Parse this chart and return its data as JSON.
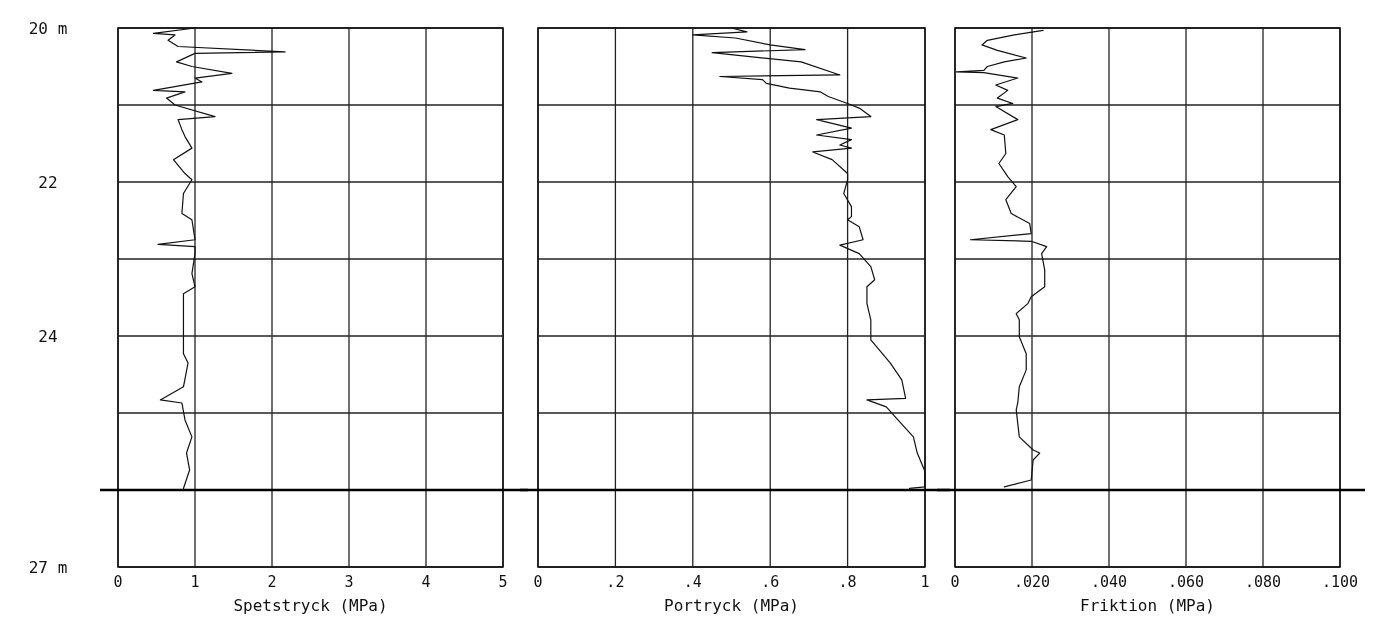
{
  "chart_data": [
    {
      "type": "line",
      "xlabel": "Spetstryck (MPa)",
      "xlim": [
        0,
        5
      ],
      "xticks": [
        0,
        1,
        2,
        3,
        4,
        5
      ],
      "ylim": [
        27,
        20
      ],
      "yticks": [
        {
          "value": 20,
          "label": "20 m"
        },
        {
          "value": 21,
          "label": null
        },
        {
          "value": 22,
          "label": "22"
        },
        {
          "value": 23,
          "label": null
        },
        {
          "value": 24,
          "label": "24"
        },
        {
          "value": 25,
          "label": null
        },
        {
          "value": 26,
          "label": null
        },
        {
          "value": 27,
          "label": "27 m"
        }
      ],
      "grid": true,
      "ref_lines": [
        {
          "axis": "y",
          "value": 26,
          "label": null
        }
      ],
      "series": [
        {
          "color": "#111111",
          "x": [
            1.0,
            0.46,
            0.74,
            0.65,
            0.78,
            2.17,
            1.0,
            0.76,
            0.96,
            1.48,
            1.0,
            1.09,
            0.46,
            0.87,
            0.63,
            0.74,
            1.26,
            0.78,
            0.83,
            0.87,
            0.96,
            0.72,
            0.87,
            0.96,
            0.85,
            0.83,
            0.96,
            1.0,
            0.52,
            1.0,
            1.0,
            0.96,
            1.0,
            0.85,
            0.85,
            0.85,
            0.85,
            0.91,
            0.85,
            0.55,
            0.83,
            0.87,
            0.96,
            0.89,
            0.93,
            0.85
          ],
          "values": [
            20.0,
            20.07,
            20.09,
            20.16,
            20.24,
            20.31,
            20.33,
            20.44,
            20.5,
            20.59,
            20.65,
            20.7,
            20.81,
            20.83,
            20.91,
            21.0,
            21.15,
            21.19,
            21.32,
            21.41,
            21.56,
            21.71,
            21.89,
            21.97,
            22.15,
            22.41,
            22.49,
            22.75,
            22.81,
            22.84,
            22.93,
            23.19,
            23.36,
            23.45,
            23.71,
            23.97,
            24.23,
            24.35,
            24.66,
            24.83,
            24.87,
            25.09,
            25.31,
            25.52,
            25.74,
            25.98
          ]
        }
      ]
    },
    {
      "type": "line",
      "xlabel": "Portryck (MPa)",
      "xlim": [
        0,
        1
      ],
      "xticks": [
        0,
        {
          "value": 0.2,
          "label": ".2"
        },
        {
          "value": 0.4,
          "label": ".4"
        },
        {
          "value": 0.6,
          "label": ".6"
        },
        {
          "value": 0.8,
          "label": ".8"
        },
        1
      ],
      "ylim": [
        27,
        20
      ],
      "yticks": [
        20,
        21,
        22,
        23,
        24,
        25,
        26,
        27
      ],
      "tick_labels": "x",
      "grid": true,
      "ref_lines": [
        {
          "axis": "y",
          "value": 26,
          "label": null
        }
      ],
      "series": [
        {
          "color": "#111111",
          "x": [
            0.5,
            0.54,
            0.4,
            0.51,
            0.6,
            0.69,
            0.45,
            0.68,
            0.78,
            0.47,
            0.58,
            0.59,
            0.65,
            0.73,
            0.75,
            0.8,
            0.83,
            0.86,
            0.72,
            0.81,
            0.72,
            0.81,
            0.78,
            0.81,
            0.71,
            0.76,
            0.8,
            0.8,
            0.79,
            0.81,
            0.81,
            0.8,
            0.83,
            0.84,
            0.78,
            0.83,
            0.86,
            0.87,
            0.85,
            0.85,
            0.86,
            0.86,
            0.91,
            0.94,
            0.95,
            0.85,
            0.9,
            0.93,
            0.97,
            0.98,
            1.0,
            1.0,
            0.96
          ],
          "values": [
            20.0,
            20.05,
            20.09,
            20.13,
            20.22,
            20.28,
            20.32,
            20.44,
            20.61,
            20.63,
            20.67,
            20.72,
            20.78,
            20.83,
            20.89,
            20.98,
            21.04,
            21.15,
            21.19,
            21.3,
            21.39,
            21.45,
            21.52,
            21.56,
            21.61,
            21.71,
            21.89,
            21.97,
            22.15,
            22.32,
            22.45,
            22.49,
            22.58,
            22.75,
            22.82,
            22.93,
            23.1,
            23.27,
            23.36,
            23.58,
            23.79,
            24.05,
            24.35,
            24.57,
            24.81,
            24.83,
            24.92,
            25.09,
            25.31,
            25.52,
            25.76,
            25.96,
            25.98
          ]
        }
      ]
    },
    {
      "type": "line",
      "xlabel": "Friktion (MPa)",
      "xlim": [
        0,
        0.1
      ],
      "xticks": [
        0,
        {
          "value": 0.02,
          "label": ".020"
        },
        {
          "value": 0.04,
          "label": ".040"
        },
        {
          "value": 0.06,
          "label": ".060"
        },
        {
          "value": 0.08,
          "label": ".080"
        },
        {
          "value": 0.1,
          "label": ".100"
        }
      ],
      "ylim": [
        27,
        20
      ],
      "yticks": [
        20,
        21,
        22,
        23,
        24,
        25,
        26,
        27
      ],
      "tick_labels": "x",
      "grid": true,
      "ref_lines": [
        {
          "axis": "y",
          "value": 26,
          "label": null
        }
      ],
      "series": [
        {
          "color": "#111111",
          "x": [
            0.0229,
            0.0154,
            0.0084,
            0.007,
            0.011,
            0.0185,
            0.0128,
            0.0084,
            0.0075,
            0.0004,
            0.0075,
            0.0163,
            0.0106,
            0.0137,
            0.011,
            0.015,
            0.0106,
            0.0163,
            0.0093,
            0.0128,
            0.0132,
            0.0114,
            0.0137,
            0.0159,
            0.0132,
            0.0146,
            0.0194,
            0.0198,
            0.004,
            0.0198,
            0.0238,
            0.0225,
            0.0233,
            0.0233,
            0.0198,
            0.0189,
            0.0159,
            0.0167,
            0.0167,
            0.0185,
            0.0185,
            0.0167,
            0.0163,
            0.0159,
            0.0167,
            0.0203,
            0.022,
            0.0203,
            0.0198,
            0.0128
          ],
          "values": [
            20.03,
            20.09,
            20.16,
            20.22,
            20.29,
            20.39,
            20.44,
            20.5,
            20.55,
            20.57,
            20.58,
            20.65,
            20.74,
            20.81,
            20.91,
            20.98,
            21.02,
            21.19,
            21.32,
            21.39,
            21.63,
            21.76,
            21.93,
            22.06,
            22.23,
            22.41,
            22.54,
            22.67,
            22.75,
            22.77,
            22.84,
            22.93,
            23.14,
            23.36,
            23.49,
            23.58,
            23.71,
            23.79,
            24.01,
            24.23,
            24.44,
            24.66,
            24.87,
            24.96,
            25.31,
            25.48,
            25.52,
            25.61,
            25.87,
            25.96
          ]
        }
      ]
    }
  ]
}
